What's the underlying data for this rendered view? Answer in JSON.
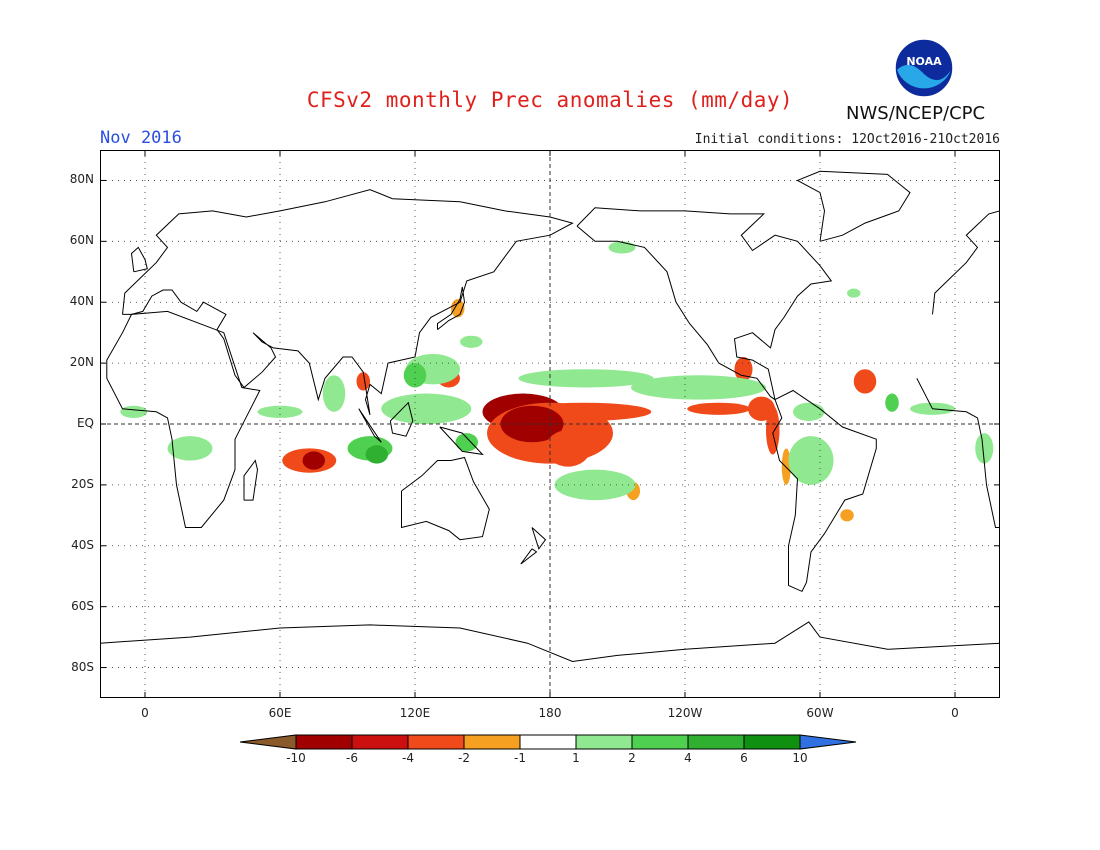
{
  "header": {
    "title": "CFSv2 monthly Prec anomalies (mm/day)",
    "month": "Nov 2016",
    "agency": "NWS/NCEP/CPC",
    "initial_conditions": "Initial conditions: 12Oct2016-21Oct2016",
    "logo_text": "NOAA"
  },
  "axes": {
    "lat_labels": [
      "80N",
      "60N",
      "40N",
      "20N",
      "EQ",
      "20S",
      "40S",
      "60S",
      "80S"
    ],
    "lat_values": [
      80,
      60,
      40,
      20,
      0,
      -20,
      -40,
      -60,
      -80
    ],
    "lon_labels": [
      "0",
      "60E",
      "120E",
      "180",
      "120W",
      "60W",
      "0"
    ],
    "lon_values": [
      0,
      60,
      120,
      180,
      240,
      300,
      360
    ],
    "lon_range": [
      -20,
      380
    ],
    "lat_range": [
      -90,
      90
    ],
    "grid": "dotted"
  },
  "colorbar": {
    "labels": [
      "-10",
      "-6",
      "-4",
      "-2",
      "-1",
      "1",
      "2",
      "4",
      "6",
      "10"
    ],
    "colors": [
      "#8b5a2b",
      "#a00000",
      "#cc1010",
      "#f04a1a",
      "#f5a020",
      "#ffffff",
      "#90e890",
      "#50d050",
      "#30b030",
      "#109010",
      "#3070e0"
    ],
    "units": "mm/day"
  },
  "colors": {
    "title": "#e0201c",
    "month": "#2a4ee0",
    "wet_light": "#90e890",
    "wet_mid": "#50d050",
    "wet_dark": "#30b030",
    "dry_light": "#f5a020",
    "dry_mid": "#f04a1a",
    "dry_dark": "#a00000"
  },
  "anomalies": [
    {
      "lon": 168,
      "lat": 4,
      "rx": 18,
      "ry": 6,
      "level": "dry_dark"
    },
    {
      "lon": 195,
      "lat": 4,
      "rx": 30,
      "ry": 3,
      "level": "dry_mid"
    },
    {
      "lon": 180,
      "lat": -3,
      "rx": 28,
      "ry": 10,
      "level": "dry_mid"
    },
    {
      "lon": 172,
      "lat": 0,
      "rx": 14,
      "ry": 6,
      "level": "dry_dark"
    },
    {
      "lon": 188,
      "lat": -8,
      "rx": 10,
      "ry": 6,
      "level": "dry_mid"
    },
    {
      "lon": 255,
      "lat": 5,
      "rx": 14,
      "ry": 2,
      "level": "dry_mid"
    },
    {
      "lon": 274,
      "lat": 5,
      "rx": 6,
      "ry": 4,
      "level": "dry_mid"
    },
    {
      "lon": 279,
      "lat": -2,
      "rx": 3,
      "ry": 8,
      "level": "dry_mid"
    },
    {
      "lon": 285,
      "lat": -14,
      "rx": 2,
      "ry": 6,
      "level": "dry_light"
    },
    {
      "lon": 73,
      "lat": -12,
      "rx": 12,
      "ry": 4,
      "level": "dry_mid"
    },
    {
      "lon": 75,
      "lat": -12,
      "rx": 5,
      "ry": 3,
      "level": "dry_dark"
    },
    {
      "lon": 135,
      "lat": 15,
      "rx": 5,
      "ry": 3,
      "level": "dry_mid"
    },
    {
      "lon": 97,
      "lat": 14,
      "rx": 3,
      "ry": 3,
      "level": "dry_mid"
    },
    {
      "lon": 320,
      "lat": 14,
      "rx": 5,
      "ry": 4,
      "level": "dry_mid"
    },
    {
      "lon": 266,
      "lat": 18,
      "rx": 4,
      "ry": 4,
      "level": "dry_mid"
    },
    {
      "lon": 312,
      "lat": -30,
      "rx": 3,
      "ry": 2,
      "level": "dry_light"
    },
    {
      "lon": 217,
      "lat": -22,
      "rx": 3,
      "ry": 3,
      "level": "dry_light"
    },
    {
      "lon": 139,
      "lat": 38,
      "rx": 3,
      "ry": 3,
      "level": "dry_light"
    },
    {
      "lon": 246,
      "lat": 12,
      "rx": 30,
      "ry": 4,
      "level": "wet_light"
    },
    {
      "lon": 196,
      "lat": 15,
      "rx": 30,
      "ry": 3,
      "level": "wet_light"
    },
    {
      "lon": 200,
      "lat": -20,
      "rx": 18,
      "ry": 5,
      "level": "wet_light"
    },
    {
      "lon": 125,
      "lat": 5,
      "rx": 20,
      "ry": 5,
      "level": "wet_light"
    },
    {
      "lon": 100,
      "lat": -8,
      "rx": 10,
      "ry": 4,
      "level": "wet_mid"
    },
    {
      "lon": 103,
      "lat": -10,
      "rx": 5,
      "ry": 3,
      "level": "wet_dark"
    },
    {
      "lon": 128,
      "lat": 18,
      "rx": 12,
      "ry": 5,
      "level": "wet_light"
    },
    {
      "lon": 120,
      "lat": 16,
      "rx": 5,
      "ry": 4,
      "level": "wet_mid"
    },
    {
      "lon": 60,
      "lat": 4,
      "rx": 10,
      "ry": 2,
      "level": "wet_light"
    },
    {
      "lon": 84,
      "lat": 10,
      "rx": 5,
      "ry": 6,
      "level": "wet_light"
    },
    {
      "lon": 143,
      "lat": -6,
      "rx": 5,
      "ry": 3,
      "level": "wet_mid"
    },
    {
      "lon": 20,
      "lat": -8,
      "rx": 10,
      "ry": 4,
      "level": "wet_light"
    },
    {
      "lon": -5,
      "lat": 4,
      "rx": 6,
      "ry": 2,
      "level": "wet_light"
    },
    {
      "lon": 296,
      "lat": -12,
      "rx": 10,
      "ry": 8,
      "level": "wet_light"
    },
    {
      "lon": 295,
      "lat": 4,
      "rx": 7,
      "ry": 3,
      "level": "wet_light"
    },
    {
      "lon": 332,
      "lat": 7,
      "rx": 3,
      "ry": 3,
      "level": "wet_mid"
    },
    {
      "lon": 350,
      "lat": 5,
      "rx": 10,
      "ry": 2,
      "level": "wet_light"
    },
    {
      "lon": 373,
      "lat": -8,
      "rx": 4,
      "ry": 5,
      "level": "wet_light"
    },
    {
      "lon": 212,
      "lat": 58,
      "rx": 6,
      "ry": 2,
      "level": "wet_light"
    },
    {
      "lon": 145,
      "lat": 27,
      "rx": 5,
      "ry": 2,
      "level": "wet_light"
    },
    {
      "lon": 315,
      "lat": 43,
      "rx": 3,
      "ry": 1.5,
      "level": "wet_light"
    }
  ]
}
